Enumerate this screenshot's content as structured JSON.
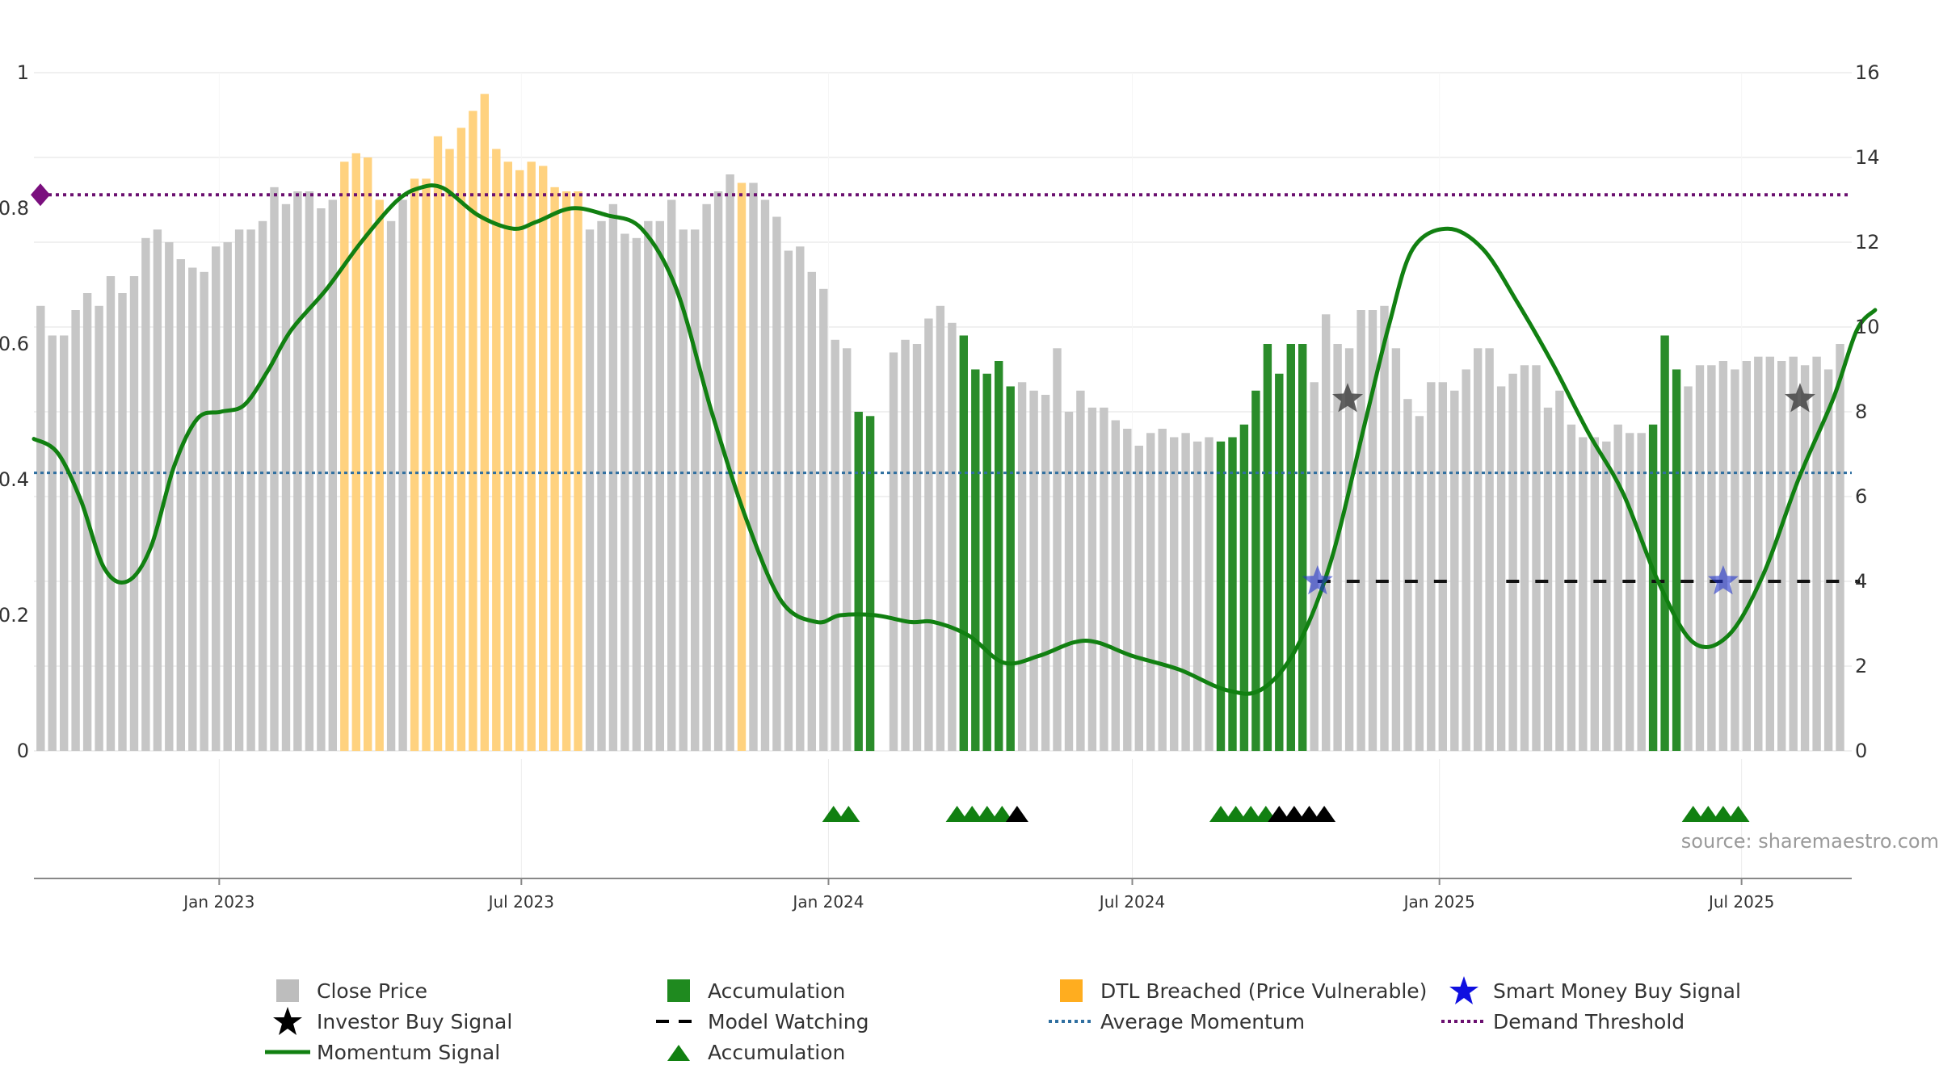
{
  "chart_data": {
    "type": "bar",
    "source": "source: sharemaestro.com",
    "left_axis": {
      "ticks": [
        "0",
        "0.2",
        "0.4",
        "0.6",
        "0.8",
        "1"
      ],
      "range": [
        0,
        1
      ]
    },
    "right_axis": {
      "ticks": [
        "0",
        "2",
        "4",
        "6",
        "8",
        "10",
        "12",
        "14",
        "16"
      ],
      "range": [
        0,
        16
      ]
    },
    "x_axis": {
      "range": [
        "2022-09-12",
        "2025-09-05"
      ],
      "ticks": [
        {
          "label": "Jan 2023",
          "date": "2023-01-01"
        },
        {
          "label": "Jul 2023",
          "date": "2023-07-01"
        },
        {
          "label": "Jan 2024",
          "date": "2024-01-01"
        },
        {
          "label": "Jul 2024",
          "date": "2024-07-01"
        },
        {
          "label": "Jan 2025",
          "date": "2025-01-01"
        },
        {
          "label": "Jul 2025",
          "date": "2025-07-01"
        }
      ]
    },
    "bars": {
      "start_date": "2022-09-16",
      "interval_days": 7,
      "values": [
        10.5,
        9.8,
        9.8,
        10.4,
        10.8,
        10.5,
        11.2,
        10.8,
        11.2,
        12.1,
        12.3,
        12.0,
        11.6,
        11.4,
        11.3,
        11.9,
        12.0,
        12.3,
        12.3,
        12.5,
        13.3,
        12.9,
        13.2,
        13.2,
        12.8,
        13.0,
        13.9,
        14.1,
        14.0,
        13.0,
        12.5,
        13.0,
        13.5,
        13.5,
        14.5,
        14.2,
        14.7,
        15.1,
        15.5,
        14.2,
        13.9,
        13.7,
        13.9,
        13.8,
        13.3,
        13.2,
        13.2,
        12.3,
        12.5,
        12.9,
        12.2,
        12.1,
        12.5,
        12.5,
        13.0,
        12.3,
        12.3,
        12.9,
        13.2,
        13.6,
        13.4,
        13.4,
        13.0,
        12.6,
        11.8,
        11.9,
        11.3,
        10.9,
        9.7,
        9.5,
        8.0,
        7.9,
        null,
        9.4,
        9.7,
        9.6,
        10.2,
        10.5,
        10.1,
        9.8,
        9.0,
        8.9,
        9.2,
        8.6,
        8.7,
        8.5,
        8.4,
        9.5,
        8.0,
        8.5,
        8.1,
        8.1,
        7.8,
        7.6,
        7.2,
        7.5,
        7.6,
        7.4,
        7.5,
        7.3,
        7.4,
        7.3,
        7.4,
        7.7,
        8.5,
        9.6,
        8.9,
        9.6,
        9.6,
        8.7,
        10.3,
        9.6,
        9.5,
        10.4,
        10.4,
        10.5,
        9.5,
        8.3,
        7.9,
        8.7,
        8.7,
        8.5,
        9.0,
        9.5,
        9.5,
        8.6,
        8.9,
        9.1,
        9.1,
        8.1,
        8.5,
        7.7,
        7.4,
        7.4,
        7.3,
        7.7,
        7.5,
        7.5,
        7.7,
        9.8,
        9.0,
        8.6,
        9.1,
        9.1,
        9.2,
        9.0,
        9.2,
        9.3,
        9.3,
        9.2,
        9.3,
        9.1,
        9.3,
        9.0,
        9.6
      ],
      "legend_close": "Close Price",
      "legend_accumulation": "Accumulation",
      "legend_dtl": "DTL Breached (Price Vulnerable)",
      "colors": {
        "close": "#c6c6c6",
        "accumulation": "#2a8c2a",
        "dtl": "#ffd27f"
      },
      "accumulation_ranges": [
        [
          70,
          71
        ],
        [
          79,
          83
        ],
        [
          101,
          108
        ],
        [
          138,
          140
        ]
      ],
      "dtl_ranges": [
        [
          26,
          29
        ],
        [
          32,
          46
        ],
        [
          60,
          60
        ]
      ]
    },
    "momentum_signal": {
      "name": "Momentum Signal",
      "color": "#118011",
      "points": [
        [
          "2022-09-12",
          0.46
        ],
        [
          "2022-09-26",
          0.44
        ],
        [
          "2022-10-10",
          0.37
        ],
        [
          "2022-10-24",
          0.27
        ],
        [
          "2022-11-07",
          0.25
        ],
        [
          "2022-11-21",
          0.3
        ],
        [
          "2022-12-05",
          0.42
        ],
        [
          "2022-12-19",
          0.49
        ],
        [
          "2023-01-02",
          0.5
        ],
        [
          "2023-01-16",
          0.51
        ],
        [
          "2023-01-30",
          0.56
        ],
        [
          "2023-02-13",
          0.62
        ],
        [
          "2023-03-06",
          0.68
        ],
        [
          "2023-03-27",
          0.75
        ],
        [
          "2023-04-17",
          0.81
        ],
        [
          "2023-05-01",
          0.83
        ],
        [
          "2023-05-15",
          0.83
        ],
        [
          "2023-06-05",
          0.79
        ],
        [
          "2023-06-26",
          0.77
        ],
        [
          "2023-07-10",
          0.78
        ],
        [
          "2023-07-31",
          0.8
        ],
        [
          "2023-08-21",
          0.79
        ],
        [
          "2023-09-11",
          0.77
        ],
        [
          "2023-10-02",
          0.68
        ],
        [
          "2023-10-23",
          0.5
        ],
        [
          "2023-11-13",
          0.34
        ],
        [
          "2023-12-04",
          0.22
        ],
        [
          "2023-12-25",
          0.19
        ],
        [
          "2024-01-08",
          0.2
        ],
        [
          "2024-01-29",
          0.2
        ],
        [
          "2024-02-19",
          0.19
        ],
        [
          "2024-03-04",
          0.19
        ],
        [
          "2024-03-25",
          0.17
        ],
        [
          "2024-04-15",
          0.13
        ],
        [
          "2024-05-06",
          0.14
        ],
        [
          "2024-05-27",
          0.16
        ],
        [
          "2024-06-10",
          0.16
        ],
        [
          "2024-07-01",
          0.14
        ],
        [
          "2024-07-29",
          0.12
        ],
        [
          "2024-08-26",
          0.09
        ],
        [
          "2024-09-16",
          0.09
        ],
        [
          "2024-10-07",
          0.15
        ],
        [
          "2024-10-28",
          0.28
        ],
        [
          "2024-11-18",
          0.49
        ],
        [
          "2024-12-02",
          0.63
        ],
        [
          "2024-12-16",
          0.74
        ],
        [
          "2025-01-06",
          0.77
        ],
        [
          "2025-01-27",
          0.74
        ],
        [
          "2025-02-17",
          0.66
        ],
        [
          "2025-03-10",
          0.57
        ],
        [
          "2025-03-31",
          0.47
        ],
        [
          "2025-04-21",
          0.38
        ],
        [
          "2025-05-12",
          0.25
        ],
        [
          "2025-06-02",
          0.16
        ],
        [
          "2025-06-23",
          0.17
        ],
        [
          "2025-07-14",
          0.26
        ],
        [
          "2025-08-04",
          0.4
        ],
        [
          "2025-08-25",
          0.52
        ],
        [
          "2025-09-08",
          0.62
        ],
        [
          "2025-09-19",
          0.65
        ]
      ]
    },
    "average_momentum": {
      "name": "Average Momentum",
      "value": 0.41,
      "color": "#2f6fa0"
    },
    "demand_threshold": {
      "name": "Demand Threshold",
      "value": 0.82,
      "color": "#6b1070"
    },
    "model_watching": {
      "name": "Model Watching",
      "segments": [
        {
          "y": 4,
          "from": "2024-10-20",
          "to": "2025-01-12"
        },
        {
          "y": 4,
          "from": "2025-02-10",
          "to": "2025-09-10"
        }
      ]
    },
    "investor_buy_signals": {
      "name": "Investor Buy Signal",
      "points": [
        [
          "2024-11-07",
          8.3
        ],
        [
          "2025-08-05",
          8.3
        ]
      ]
    },
    "smart_money_buy_signals": {
      "name": "Smart Money Buy Signal",
      "points": [
        [
          "2024-10-20",
          4
        ],
        [
          "2025-06-20",
          4
        ]
      ]
    },
    "accumulation_markers": {
      "name": "Accumulation",
      "green": [
        "2024-01-04",
        "2024-01-13",
        "2024-03-18",
        "2024-03-27",
        "2024-04-05",
        "2024-04-14",
        "2024-08-23",
        "2024-09-01",
        "2024-09-10",
        "2024-09-19",
        "2025-06-02",
        "2025-06-11",
        "2025-06-20",
        "2025-06-29"
      ],
      "black": [
        "2024-04-23",
        "2024-09-27",
        "2024-10-06",
        "2024-10-15",
        "2024-10-24"
      ]
    }
  },
  "legend": [
    {
      "label": "Close Price",
      "icon": "square-grey"
    },
    {
      "label": "Accumulation",
      "icon": "square-green"
    },
    {
      "label": "DTL Breached (Price Vulnerable)",
      "icon": "square-orange"
    },
    {
      "label": "Smart Money Buy Signal",
      "icon": "star-blue"
    },
    {
      "label": "Investor Buy Signal",
      "icon": "star-black"
    },
    {
      "label": "Model Watching",
      "icon": "dash-black"
    },
    {
      "label": "Average Momentum",
      "icon": "dot-blue"
    },
    {
      "label": "Demand Threshold",
      "icon": "dot-purple"
    },
    {
      "label": "Momentum Signal",
      "icon": "line-green"
    },
    {
      "label": "Accumulation",
      "icon": "triangle-green"
    }
  ]
}
